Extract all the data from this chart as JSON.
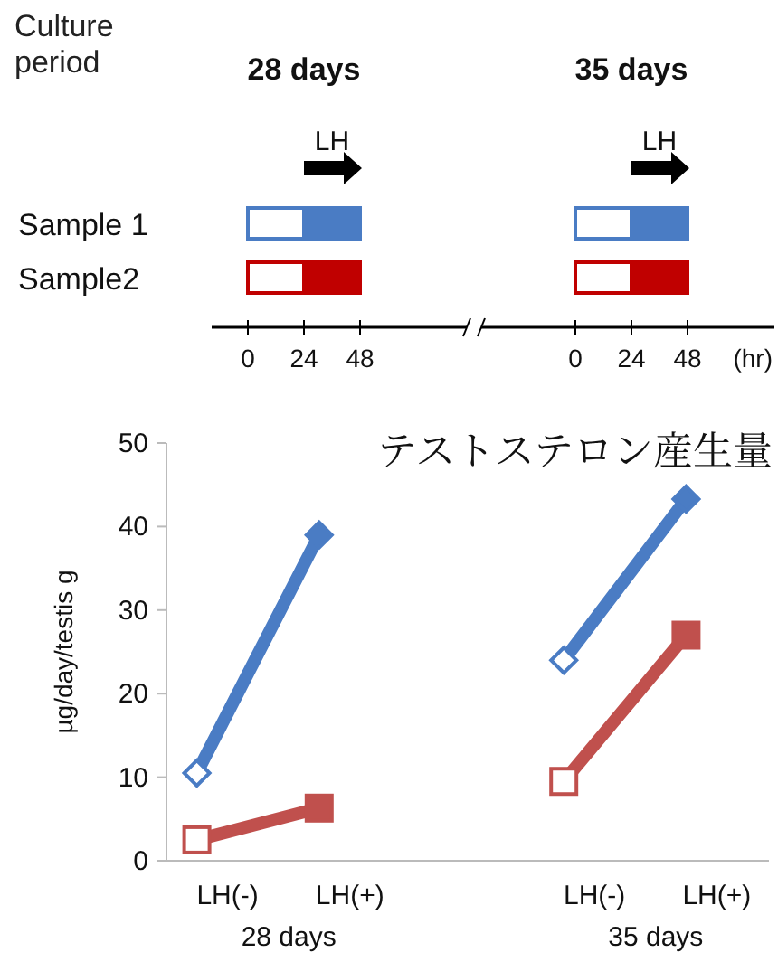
{
  "chart_data": [
    {
      "type": "other",
      "title": "Culture period",
      "categories": [
        "28 days",
        "35 days"
      ],
      "y_categories": [
        "Sample 1",
        "Sample2"
      ],
      "colors": [
        "#4a7cc4",
        "#c00000"
      ],
      "xlabel": "(hr)",
      "annotations": [
        "LH",
        "0",
        "24",
        "48"
      ]
    },
    {
      "type": "line",
      "title": "テストステロン産生量",
      "ylabel": "µg/day/testis g",
      "categories": [
        "LH(-)",
        "LH(+)",
        null,
        "LH(-)",
        "LH(+)"
      ],
      "annotations": [
        "28 days",
        "35 days"
      ],
      "series": [
        {
          "color": "#4a7cc4",
          "marker": "diamond",
          "colors": [
            "#ffffff",
            "#4a7cc4",
            null,
            "#ffffff",
            "#4a7cc4"
          ],
          "values": [
            10.5,
            39,
            null,
            24,
            43.3
          ]
        },
        {
          "color": "#c0504d",
          "marker": "square",
          "colors": [
            "#ffffff",
            "#c0504d",
            null,
            "#ffffff",
            "#c0504d"
          ],
          "values": [
            2.5,
            6.3,
            null,
            9.5,
            27
          ]
        }
      ],
      "ylim": [
        0,
        50
      ],
      "yticks": [
        0,
        10,
        20,
        30,
        40,
        50
      ],
      "grid": false
    }
  ]
}
